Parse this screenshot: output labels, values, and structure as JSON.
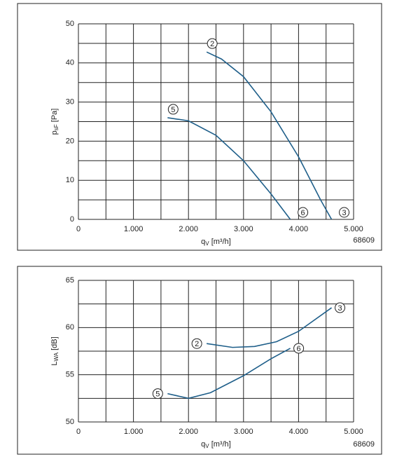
{
  "chart_data": [
    {
      "type": "line",
      "grid": true,
      "color": "#1f5f8a",
      "x_label": {
        "main": "q",
        "sub": "V",
        "unit": " [m³/h]"
      },
      "y_label": {
        "main": "p",
        "sub": "sF",
        "unit": " [Pa]"
      },
      "code": "68609",
      "xlim": [
        0,
        5000
      ],
      "ylim": [
        0,
        50
      ],
      "xticks": [
        0,
        {
          "value": 1000,
          "label": "1.000"
        },
        {
          "value": 2000,
          "label": "2.000"
        },
        {
          "value": 3000,
          "label": "3.000"
        },
        {
          "value": 4000,
          "label": "4.000"
        },
        {
          "value": 5000,
          "label": "5.000"
        }
      ],
      "yticks": [
        0,
        10,
        20,
        30,
        40,
        50
      ],
      "series": [
        {
          "start_label": "2",
          "end_label": "3",
          "x": [
            2330,
            2600,
            3000,
            3500,
            4000,
            4400,
            4600
          ],
          "values": [
            42.8,
            41,
            36.5,
            27.5,
            16,
            5,
            0
          ]
        },
        {
          "start_label": "5",
          "end_label": "6",
          "x": [
            1620,
            2000,
            2500,
            3000,
            3500,
            3850
          ],
          "values": [
            26,
            25.2,
            21.5,
            15,
            6.5,
            0
          ]
        }
      ]
    },
    {
      "type": "line",
      "grid": true,
      "color": "#1f5f8a",
      "x_label": {
        "main": "q",
        "sub": "V",
        "unit": " [m³/h]"
      },
      "y_label": {
        "main": "L",
        "sub": "WA",
        "unit": " [dB]"
      },
      "code": "68609",
      "xlim": [
        0,
        5000
      ],
      "ylim": [
        50,
        65
      ],
      "xticks": [
        0,
        {
          "value": 1000,
          "label": "1.000"
        },
        {
          "value": 2000,
          "label": "2.000"
        },
        {
          "value": 3000,
          "label": "3.000"
        },
        {
          "value": 4000,
          "label": "4.000"
        },
        {
          "value": 5000,
          "label": "5.000"
        }
      ],
      "yticks": [
        50,
        55,
        60,
        65
      ],
      "series": [
        {
          "start_label": "2",
          "end_label": "3",
          "x": [
            2330,
            2800,
            3200,
            3600,
            4000,
            4600
          ],
          "values": [
            58.3,
            57.9,
            58,
            58.5,
            59.6,
            62.1
          ]
        },
        {
          "start_label": "5",
          "end_label": "6",
          "x": [
            1620,
            2000,
            2400,
            3000,
            3500,
            3850
          ],
          "values": [
            53,
            52.5,
            53.1,
            54.9,
            56.7,
            57.8
          ]
        }
      ]
    }
  ]
}
